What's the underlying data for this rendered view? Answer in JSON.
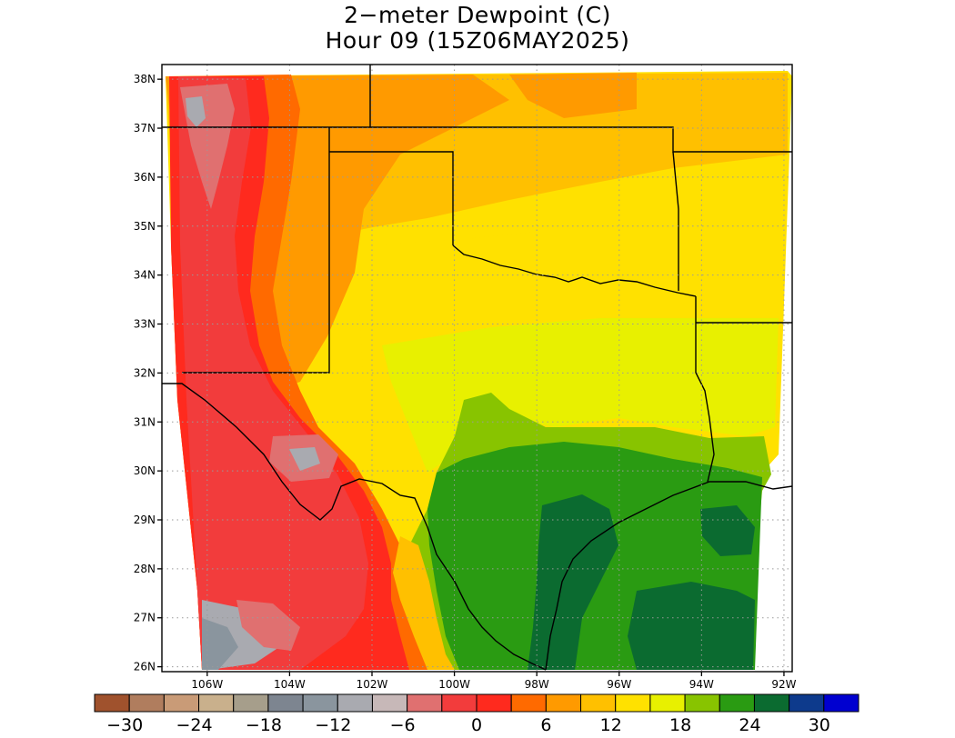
{
  "title": {
    "line1": "2−meter Dewpoint (C)",
    "line2": "Hour 09 (15Z06MAY2025)"
  },
  "map": {
    "lat_labels": [
      "26N",
      "27N",
      "28N",
      "29N",
      "30N",
      "31N",
      "32N",
      "33N",
      "34N",
      "35N",
      "36N",
      "37N",
      "38N"
    ],
    "lon_labels": [
      "106W",
      "104W",
      "102W",
      "100W",
      "98W",
      "96W",
      "94W",
      "92W"
    ],
    "lat_values": [
      26,
      27,
      28,
      29,
      30,
      31,
      32,
      33,
      34,
      35,
      36,
      37,
      38
    ],
    "lon_values": [
      -106,
      -104,
      -102,
      -100,
      -98,
      -96,
      -94,
      -92
    ],
    "extent": {
      "lon_min": -107.1,
      "lon_max": -91.8,
      "lat_min": 25.9,
      "lat_max": 38.3
    },
    "gridlines": "dotted"
  },
  "colorbar": {
    "labels": [
      "−30",
      "−24",
      "−18",
      "−12",
      "−6",
      "0",
      "6",
      "12",
      "18",
      "24",
      "30"
    ],
    "boundaries": [
      -33,
      -30,
      -27,
      -24,
      -21,
      -18,
      -15,
      -12,
      -9,
      -6,
      -3,
      0,
      3,
      6,
      9,
      12,
      15,
      18,
      21,
      24,
      27,
      30,
      33
    ],
    "colors": [
      "#a0522d",
      "#b07d5e",
      "#c99b77",
      "#c9b08c",
      "#a69e8b",
      "#7d8590",
      "#8a959e",
      "#a9aab0",
      "#c7b8b8",
      "#e07070",
      "#f23c3c",
      "#ff2a1e",
      "#ff6a00",
      "#ff9a00",
      "#ffc000",
      "#ffe100",
      "#e8f000",
      "#88c400",
      "#2a9b12",
      "#0b6b30",
      "#0d3a8c",
      "#0000d0"
    ]
  }
}
